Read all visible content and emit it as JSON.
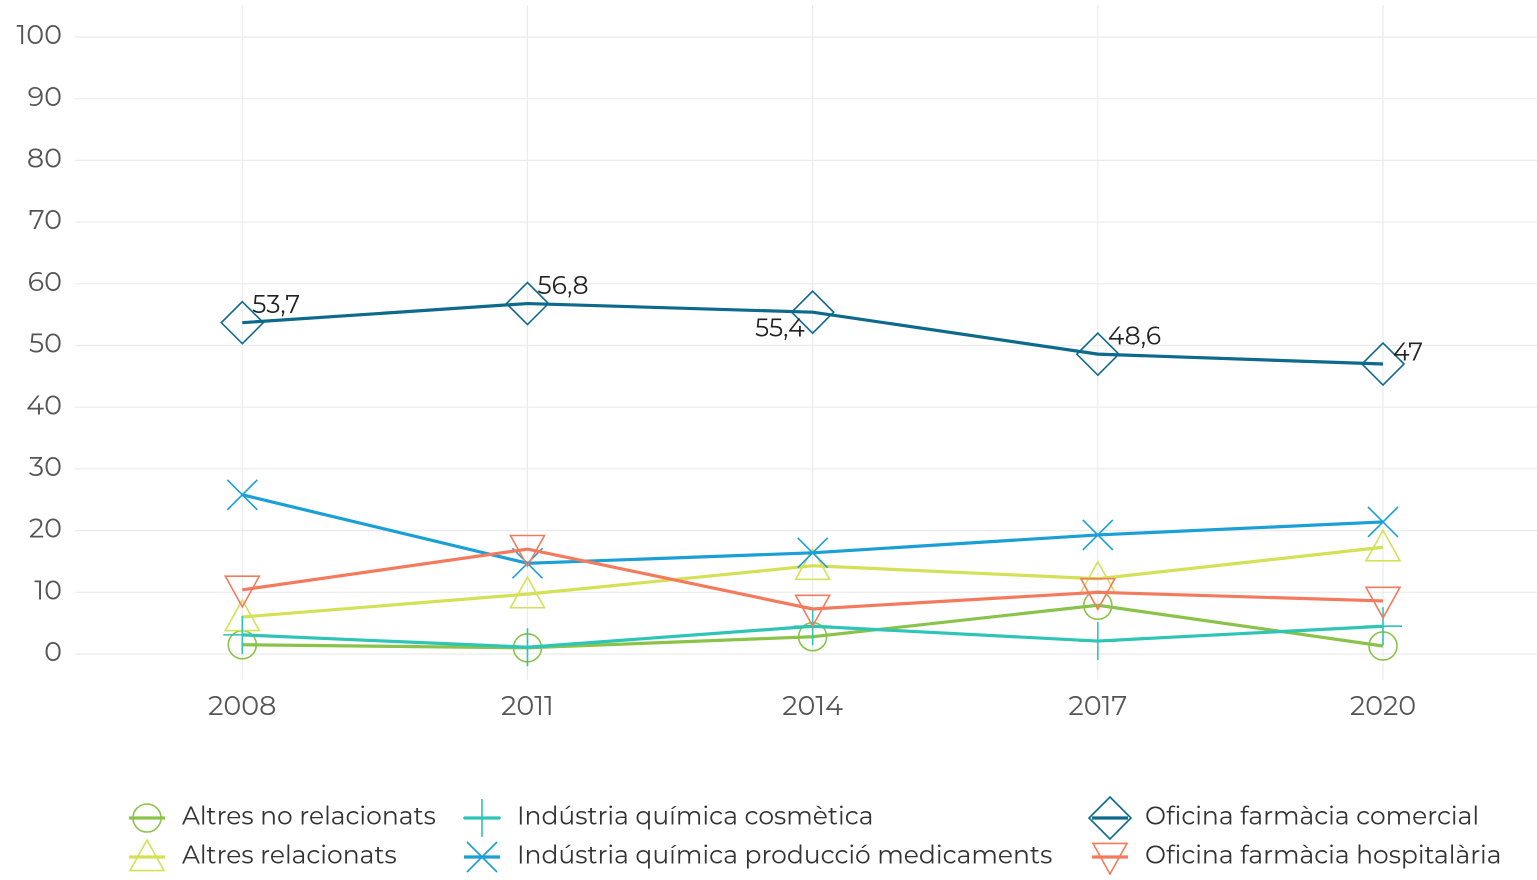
{
  "chart_data": {
    "type": "line",
    "x": [
      2008,
      2011,
      2014,
      2017,
      2020
    ],
    "xlim": [
      2006.24,
      2021.62
    ],
    "xticks": [
      2008,
      2011,
      2014,
      2017,
      2020
    ],
    "ylim": [
      0,
      100
    ],
    "yticks": [
      0,
      10,
      20,
      30,
      40,
      50,
      60,
      70,
      80,
      90,
      100
    ],
    "grid": true,
    "legend": "bottom",
    "series": [
      {
        "name": "Altres no relacionats",
        "color": "#8bc34a",
        "marker": "circle",
        "values": [
          1.5,
          1.0,
          2.8,
          7.9,
          1.3
        ]
      },
      {
        "name": "Altres relacionats",
        "color": "#d4e157",
        "marker": "triangle-up",
        "values": [
          6.0,
          9.7,
          14.3,
          12.2,
          17.3
        ]
      },
      {
        "name": "Indústria química cosmètica",
        "color": "#2ec4b6",
        "marker": "plus",
        "values": [
          3.1,
          1.1,
          4.5,
          2.1,
          4.5
        ]
      },
      {
        "name": "Indústria química producció medicaments",
        "color": "#1a9fd6",
        "marker": "cross",
        "values": [
          25.8,
          14.7,
          16.4,
          19.3,
          21.4
        ]
      },
      {
        "name": "Oficina farmàcia comercial",
        "color": "#0e6a8c",
        "marker": "diamond",
        "values": [
          53.7,
          56.8,
          55.4,
          48.6,
          47
        ],
        "value_labels": [
          "53,7",
          "56,8",
          "55,4",
          "48,6",
          "47"
        ]
      },
      {
        "name": "Oficina farmàcia hospitalària",
        "color": "#f47a5e",
        "marker": "triangle-down",
        "values": [
          10.4,
          17.0,
          7.3,
          10.0,
          8.6
        ]
      }
    ]
  }
}
